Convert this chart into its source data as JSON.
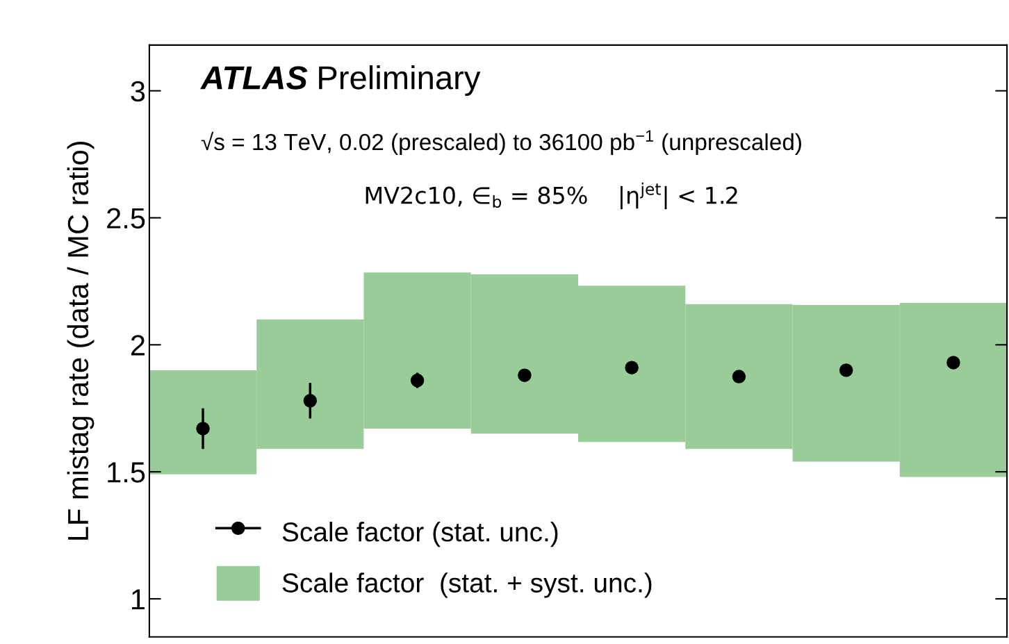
{
  "chart_data": {
    "type": "scatter",
    "ylabel": "LF mistag rate (data / MC ratio)",
    "categories": [
      null,
      null,
      null,
      null,
      null,
      null,
      null,
      null
    ],
    "series": [
      {
        "name": "Scale factor  (stat. + syst. unc.)",
        "type": "bar",
        "color": "#9acc9a",
        "base": [
          1.49,
          1.59,
          1.67,
          1.65,
          1.617,
          1.59,
          1.54,
          1.48
        ],
        "values": [
          0.41,
          0.51,
          0.615,
          0.627,
          0.616,
          0.57,
          0.617,
          0.685
        ]
      },
      {
        "name": "Scale factor (stat. unc.)",
        "color": "#000000",
        "values": [
          1.67,
          1.78,
          1.86,
          1.88,
          1.91,
          1.875,
          1.9,
          1.93
        ],
        "errors": [
          0.08,
          0.07,
          0.03,
          null,
          null,
          null,
          null,
          null
        ]
      }
    ],
    "ylim": [
      0.85,
      3.18
    ],
    "yticks": [
      1,
      1.5,
      2,
      2.5,
      3
    ],
    "tick_labels": "y",
    "marker": "circle",
    "legend": "bottom left",
    "grid": false,
    "annotations": [
      "ATLAS",
      "Preliminary",
      "√s = 13 TeV, 0.02 (prescaled) to 36100 pb$^{−1}$ (unprescaled)",
      "MV2c10, ∈$_{b}$ = 85%    |η$^{jet}$| < 1.2"
    ]
  }
}
